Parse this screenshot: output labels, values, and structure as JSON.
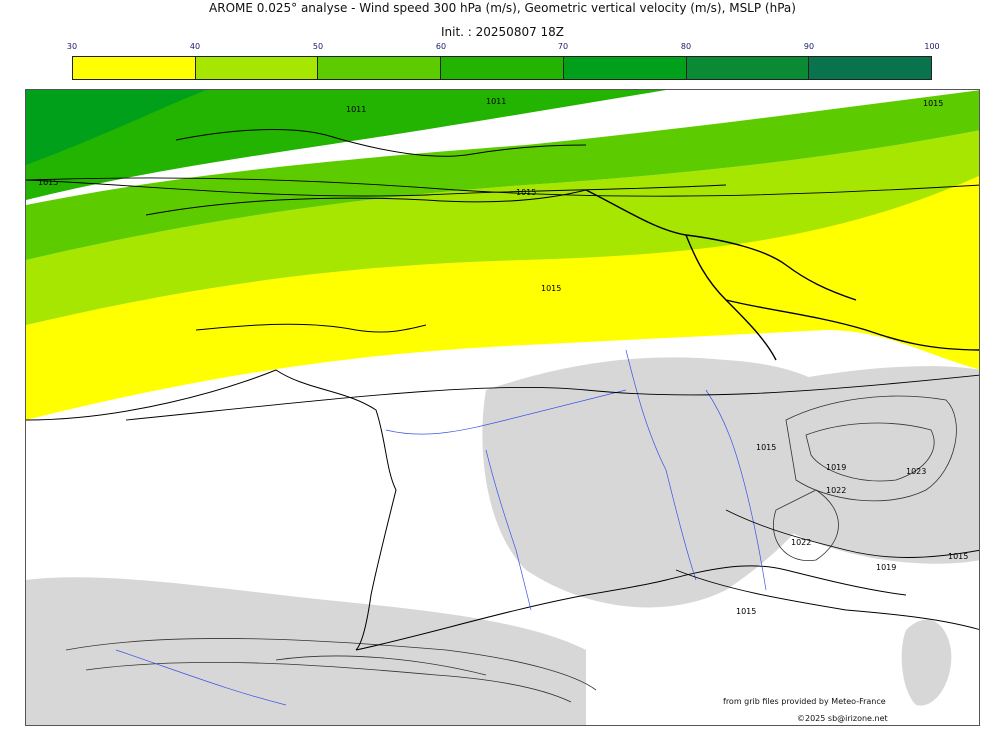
{
  "header": {
    "title": "AROME 0.025° analyse - Wind speed 300 hPa (m/s), Geometric vertical velocity (m/s), MSLP (hPa)",
    "subtitle": "Init. : 20250807 18Z"
  },
  "colorbar": {
    "ticks": [
      "30",
      "40",
      "50",
      "60",
      "70",
      "80",
      "90",
      "100"
    ],
    "colors": [
      "#ffff00",
      "#a6e600",
      "#5ccc00",
      "#22b400",
      "#00a01a",
      "#0a8a34",
      "#08734c"
    ]
  },
  "map": {
    "isobar_labels": [
      "1011",
      "1011",
      "1015",
      "1015",
      "1015",
      "1015",
      "1015",
      "1019",
      "1022",
      "1023",
      "1022",
      "1015",
      "1019",
      "1015"
    ]
  },
  "footer": {
    "credit": "from grib files provided by Meteo-France",
    "copyright": "©2025 sb@irizone.net"
  }
}
